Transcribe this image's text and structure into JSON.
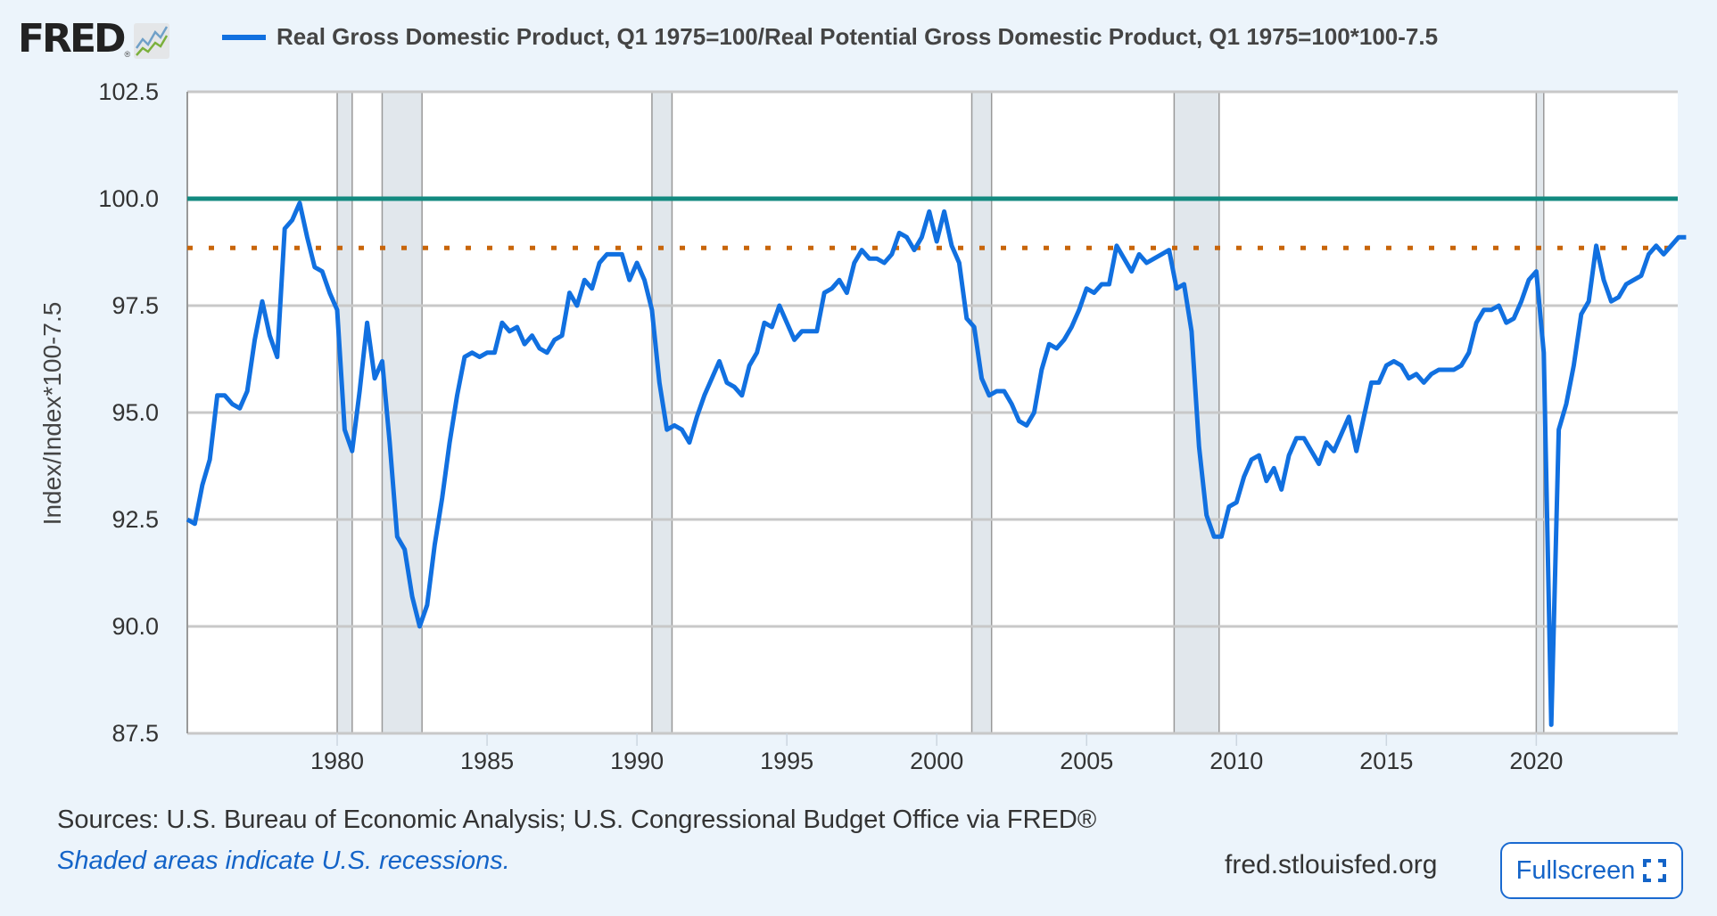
{
  "header": {
    "logo_text": "FRED",
    "logo_reg": "®",
    "series_title": "Real Gross Domestic Product, Q1 1975=100/Real Potential Gross Domestic Product, Q1 1975=100*100-7.5"
  },
  "footer": {
    "sources": "Sources: U.S. Bureau of Economic Analysis; U.S. Congressional Budget Office via FRED®",
    "shaded_note": "Shaded areas indicate U.S. recessions.",
    "site": "fred.stlouisfed.org",
    "fullscreen_label": "Fullscreen",
    "fullscreen_icon": "expand-icon"
  },
  "colors": {
    "series": "#1170e0",
    "ref_solid": "#138a80",
    "ref_dotted": "#c8650a",
    "recession": "#e1e7ec",
    "grid": "#c8c8c8"
  },
  "chart_data": {
    "type": "line",
    "title": "Real Gross Domestic Product, Q1 1975=100/Real Potential Gross Domestic Product, Q1 1975=100*100-7.5",
    "xlabel": "",
    "ylabel": "Index/Index*100-7.5",
    "ylim": [
      87.5,
      102.5
    ],
    "xlim": [
      1975.0,
      2024.75
    ],
    "yticks": [
      "87.5",
      "90.0",
      "92.5",
      "95.0",
      "97.5",
      "100.0",
      "102.5"
    ],
    "xticks": [
      "1980",
      "1985",
      "1990",
      "1995",
      "2000",
      "2005",
      "2010",
      "2015",
      "2020"
    ],
    "grid": true,
    "reference_lines": [
      {
        "style": "solid",
        "value": 100.0
      },
      {
        "style": "dotted",
        "value": 98.85
      }
    ],
    "recessions": [
      [
        1980.0,
        1980.5
      ],
      [
        1981.5,
        1982.83
      ],
      [
        1990.5,
        1991.17
      ],
      [
        2001.17,
        2001.83
      ],
      [
        2007.92,
        2009.42
      ],
      [
        2020.0,
        2020.25
      ]
    ],
    "series": [
      {
        "name": "Real Gross Domestic Product, Q1 1975=100/Real Potential Gross Domestic Product, Q1 1975=100*100-7.5",
        "x_start": 1975.0,
        "x_step": 0.25,
        "values": [
          92.5,
          92.4,
          93.3,
          93.9,
          95.4,
          95.4,
          95.2,
          95.1,
          95.5,
          96.7,
          97.6,
          96.8,
          96.3,
          99.3,
          99.5,
          99.9,
          99.1,
          98.4,
          98.3,
          97.8,
          97.4,
          94.6,
          94.1,
          95.5,
          97.1,
          95.8,
          96.2,
          94.3,
          92.1,
          91.8,
          90.7,
          90.0,
          90.5,
          91.9,
          93.0,
          94.3,
          95.4,
          96.3,
          96.4,
          96.3,
          96.4,
          96.4,
          97.1,
          96.9,
          97.0,
          96.6,
          96.8,
          96.5,
          96.4,
          96.7,
          96.8,
          97.8,
          97.5,
          98.1,
          97.9,
          98.5,
          98.7,
          98.7,
          98.7,
          98.1,
          98.5,
          98.1,
          97.4,
          95.7,
          94.6,
          94.7,
          94.6,
          94.3,
          94.9,
          95.4,
          95.8,
          96.2,
          95.7,
          95.6,
          95.4,
          96.1,
          96.4,
          97.1,
          97.0,
          97.5,
          97.1,
          96.7,
          96.9,
          96.9,
          96.9,
          97.8,
          97.9,
          98.1,
          97.8,
          98.5,
          98.8,
          98.6,
          98.6,
          98.5,
          98.7,
          99.2,
          99.1,
          98.8,
          99.1,
          99.7,
          99.0,
          99.7,
          98.9,
          98.5,
          97.2,
          97.0,
          95.8,
          95.4,
          95.5,
          95.5,
          95.2,
          94.8,
          94.7,
          95.0,
          96.0,
          96.6,
          96.5,
          96.7,
          97.0,
          97.4,
          97.9,
          97.8,
          98.0,
          98.0,
          98.9,
          98.6,
          98.3,
          98.7,
          98.5,
          98.6,
          98.7,
          98.8,
          97.9,
          98.0,
          96.9,
          94.2,
          92.6,
          92.1,
          92.1,
          92.8,
          92.9,
          93.5,
          93.9,
          94.0,
          93.4,
          93.7,
          93.2,
          94.0,
          94.4,
          94.4,
          94.1,
          93.8,
          94.3,
          94.1,
          94.5,
          94.9,
          94.1,
          94.9,
          95.7,
          95.7,
          96.1,
          96.2,
          96.1,
          95.8,
          95.9,
          95.7,
          95.9,
          96.0,
          96.0,
          96.0,
          96.1,
          96.4,
          97.1,
          97.4,
          97.4,
          97.5,
          97.1,
          97.2,
          97.6,
          98.1,
          98.3,
          96.4,
          87.7,
          94.6,
          95.2,
          96.1,
          97.3,
          97.6,
          98.9,
          98.1,
          97.6,
          97.7,
          98.0,
          98.1,
          98.2,
          98.7,
          98.9,
          98.7,
          98.9,
          99.1,
          99.1
        ]
      }
    ]
  }
}
